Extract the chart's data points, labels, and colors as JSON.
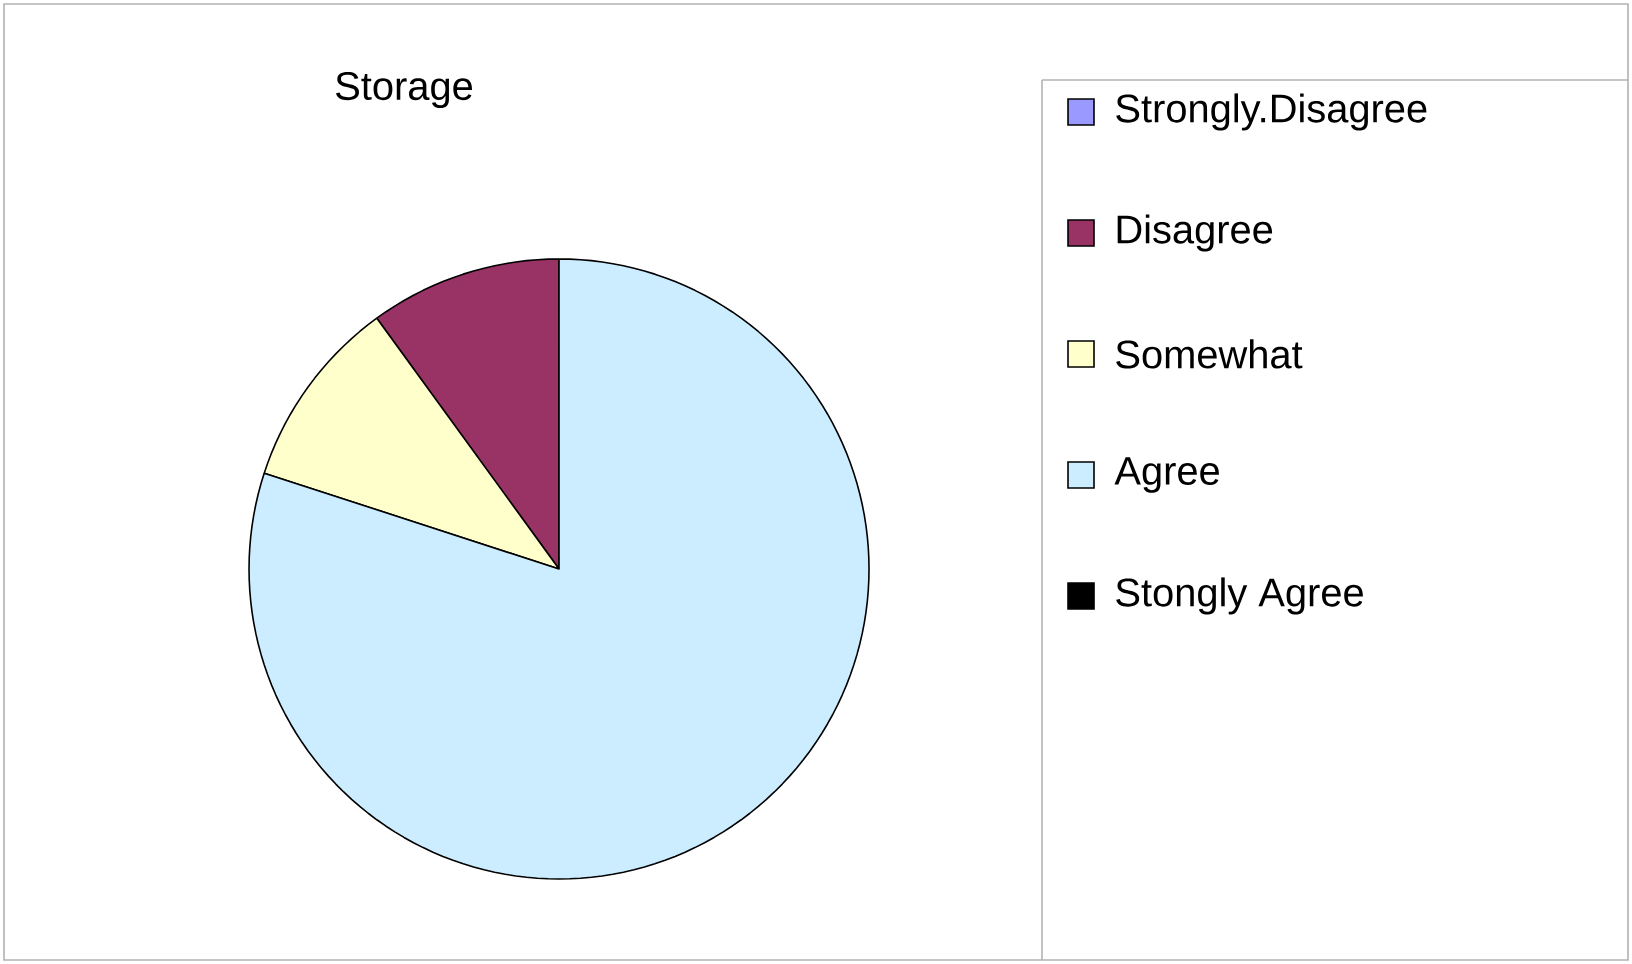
{
  "chart_data": {
    "type": "pie",
    "title": "Storage",
    "categories": [
      "Strongly.Disagree",
      "Disagree",
      "Somewhat",
      "Agree",
      "Stongly Agree"
    ],
    "values": [
      0,
      10,
      10,
      80,
      0
    ],
    "colors": [
      "#9999ff",
      "#993366",
      "#ffffcc",
      "#ccecff",
      "#000000"
    ],
    "legend": "right"
  }
}
